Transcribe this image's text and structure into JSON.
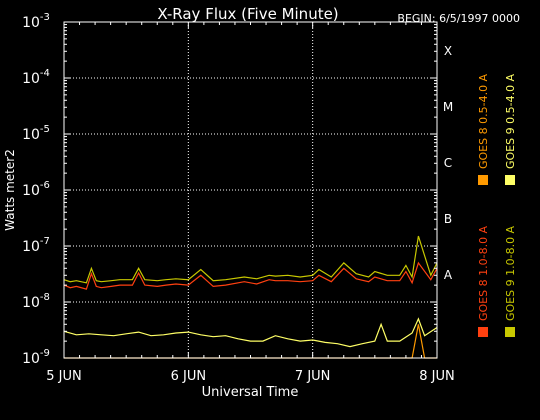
{
  "chart_data": {
    "type": "line",
    "title": "X-Ray Flux (Five Minute)",
    "begin_label": "BEGIN: 6/5/1997 0000",
    "xlabel": "Universal Time",
    "ylabel": "Watts meter2",
    "x_ticks": [
      {
        "t": 0,
        "label": "5 JUN"
      },
      {
        "t": 1,
        "label": "6 JUN"
      },
      {
        "t": 2,
        "label": "7 JUN"
      },
      {
        "t": 3,
        "label": "8 JUN"
      }
    ],
    "xlim": [
      0,
      3
    ],
    "y_scale": "log",
    "ylim": [
      1e-09,
      0.001
    ],
    "y_ticks": [
      {
        "value": 1e-09,
        "base": "10",
        "exp": "-9"
      },
      {
        "value": 1e-08,
        "base": "10",
        "exp": "-8"
      },
      {
        "value": 1e-07,
        "base": "10",
        "exp": "-7"
      },
      {
        "value": 1e-06,
        "base": "10",
        "exp": "-6"
      },
      {
        "value": 1e-05,
        "base": "10",
        "exp": "-5"
      },
      {
        "value": 0.0001,
        "base": "10",
        "exp": "-4"
      },
      {
        "value": 0.001,
        "base": "10",
        "exp": "-3"
      }
    ],
    "flare_classes": [
      {
        "label": "A",
        "value": 1e-08
      },
      {
        "label": "B",
        "value": 1e-07
      },
      {
        "label": "C",
        "value": 1e-06
      },
      {
        "label": "M",
        "value": 1e-05
      },
      {
        "label": "X",
        "value": 0.0001
      }
    ],
    "grid": true,
    "legend_placement": "right-vertical",
    "series": [
      {
        "name": "GOES 8 1.0-8.0 A",
        "color": "#ff4010",
        "x": [
          0,
          0.05,
          0.1,
          0.18,
          0.22,
          0.26,
          0.3,
          0.38,
          0.45,
          0.55,
          0.6,
          0.65,
          0.75,
          0.82,
          0.9,
          1.0,
          1.1,
          1.2,
          1.3,
          1.45,
          1.55,
          1.65,
          1.7,
          1.8,
          1.9,
          2.0,
          2.05,
          2.15,
          2.25,
          2.35,
          2.45,
          2.5,
          2.6,
          2.7,
          2.75,
          2.8,
          2.85,
          2.95,
          3.0
        ],
        "y": [
          2e-08,
          1.8e-08,
          1.9e-08,
          1.7e-08,
          3.2e-08,
          1.9e-08,
          1.8e-08,
          1.9e-08,
          2e-08,
          2e-08,
          3.3e-08,
          2e-08,
          1.9e-08,
          2e-08,
          2.1e-08,
          2e-08,
          3e-08,
          1.9e-08,
          2e-08,
          2.3e-08,
          2.1e-08,
          2.5e-08,
          2.4e-08,
          2.4e-08,
          2.3e-08,
          2.4e-08,
          3e-08,
          2.3e-08,
          4e-08,
          2.6e-08,
          2.3e-08,
          2.8e-08,
          2.4e-08,
          2.4e-08,
          3.5e-08,
          2.2e-08,
          5e-08,
          2.5e-08,
          4e-08
        ]
      },
      {
        "name": "GOES 8 0.5-4.0 A",
        "color": "#ff9a00",
        "x": [
          0,
          0.2,
          0.25,
          0.3,
          0.6,
          0.8,
          1.0,
          1.5,
          2.0,
          2.5,
          2.8,
          2.85,
          2.9,
          3.0
        ],
        "y": [
          1e-09,
          1e-09,
          1e-09,
          1e-09,
          1e-09,
          1e-09,
          1e-09,
          1e-09,
          1e-09,
          1e-09,
          1e-09,
          4e-09,
          1e-09,
          1e-09
        ]
      },
      {
        "name": "GOES 9 0.5-4.0 A",
        "color": "#ffff66",
        "x": [
          0,
          0.1,
          0.2,
          0.3,
          0.4,
          0.5,
          0.6,
          0.7,
          0.8,
          0.9,
          1.0,
          1.1,
          1.2,
          1.3,
          1.4,
          1.5,
          1.6,
          1.7,
          1.8,
          1.9,
          2.0,
          2.1,
          2.2,
          2.3,
          2.4,
          2.5,
          2.55,
          2.6,
          2.7,
          2.8,
          2.85,
          2.9,
          3.0
        ],
        "y": [
          3e-09,
          2.6e-09,
          2.7e-09,
          2.6e-09,
          2.5e-09,
          2.7e-09,
          2.9e-09,
          2.5e-09,
          2.6e-09,
          2.8e-09,
          2.9e-09,
          2.6e-09,
          2.4e-09,
          2.5e-09,
          2.2e-09,
          2e-09,
          2e-09,
          2.5e-09,
          2.2e-09,
          2e-09,
          2.1e-09,
          1.9e-09,
          1.8e-09,
          1.6e-09,
          1.8e-09,
          2e-09,
          4e-09,
          2e-09,
          2e-09,
          2.8e-09,
          5e-09,
          2.5e-09,
          3.5e-09
        ]
      },
      {
        "name": "GOES 9 1.0-8.0 A",
        "color": "#c8c800",
        "x": [
          0,
          0.05,
          0.1,
          0.18,
          0.22,
          0.26,
          0.3,
          0.38,
          0.45,
          0.55,
          0.6,
          0.65,
          0.75,
          0.82,
          0.9,
          1.0,
          1.1,
          1.2,
          1.3,
          1.45,
          1.55,
          1.65,
          1.7,
          1.8,
          1.9,
          2.0,
          2.05,
          2.15,
          2.25,
          2.35,
          2.45,
          2.5,
          2.6,
          2.7,
          2.75,
          2.8,
          2.85,
          2.95,
          3.0
        ],
        "y": [
          2.5e-08,
          2.3e-08,
          2.4e-08,
          2.2e-08,
          4e-08,
          2.4e-08,
          2.3e-08,
          2.4e-08,
          2.5e-08,
          2.5e-08,
          4e-08,
          2.5e-08,
          2.4e-08,
          2.5e-08,
          2.6e-08,
          2.5e-08,
          3.8e-08,
          2.4e-08,
          2.5e-08,
          2.8e-08,
          2.6e-08,
          3e-08,
          2.9e-08,
          3e-08,
          2.8e-08,
          3e-08,
          3.8e-08,
          2.8e-08,
          5e-08,
          3.2e-08,
          2.8e-08,
          3.5e-08,
          3e-08,
          3e-08,
          4.5e-08,
          2.8e-08,
          1.5e-07,
          3e-08,
          5e-08
        ]
      }
    ]
  }
}
